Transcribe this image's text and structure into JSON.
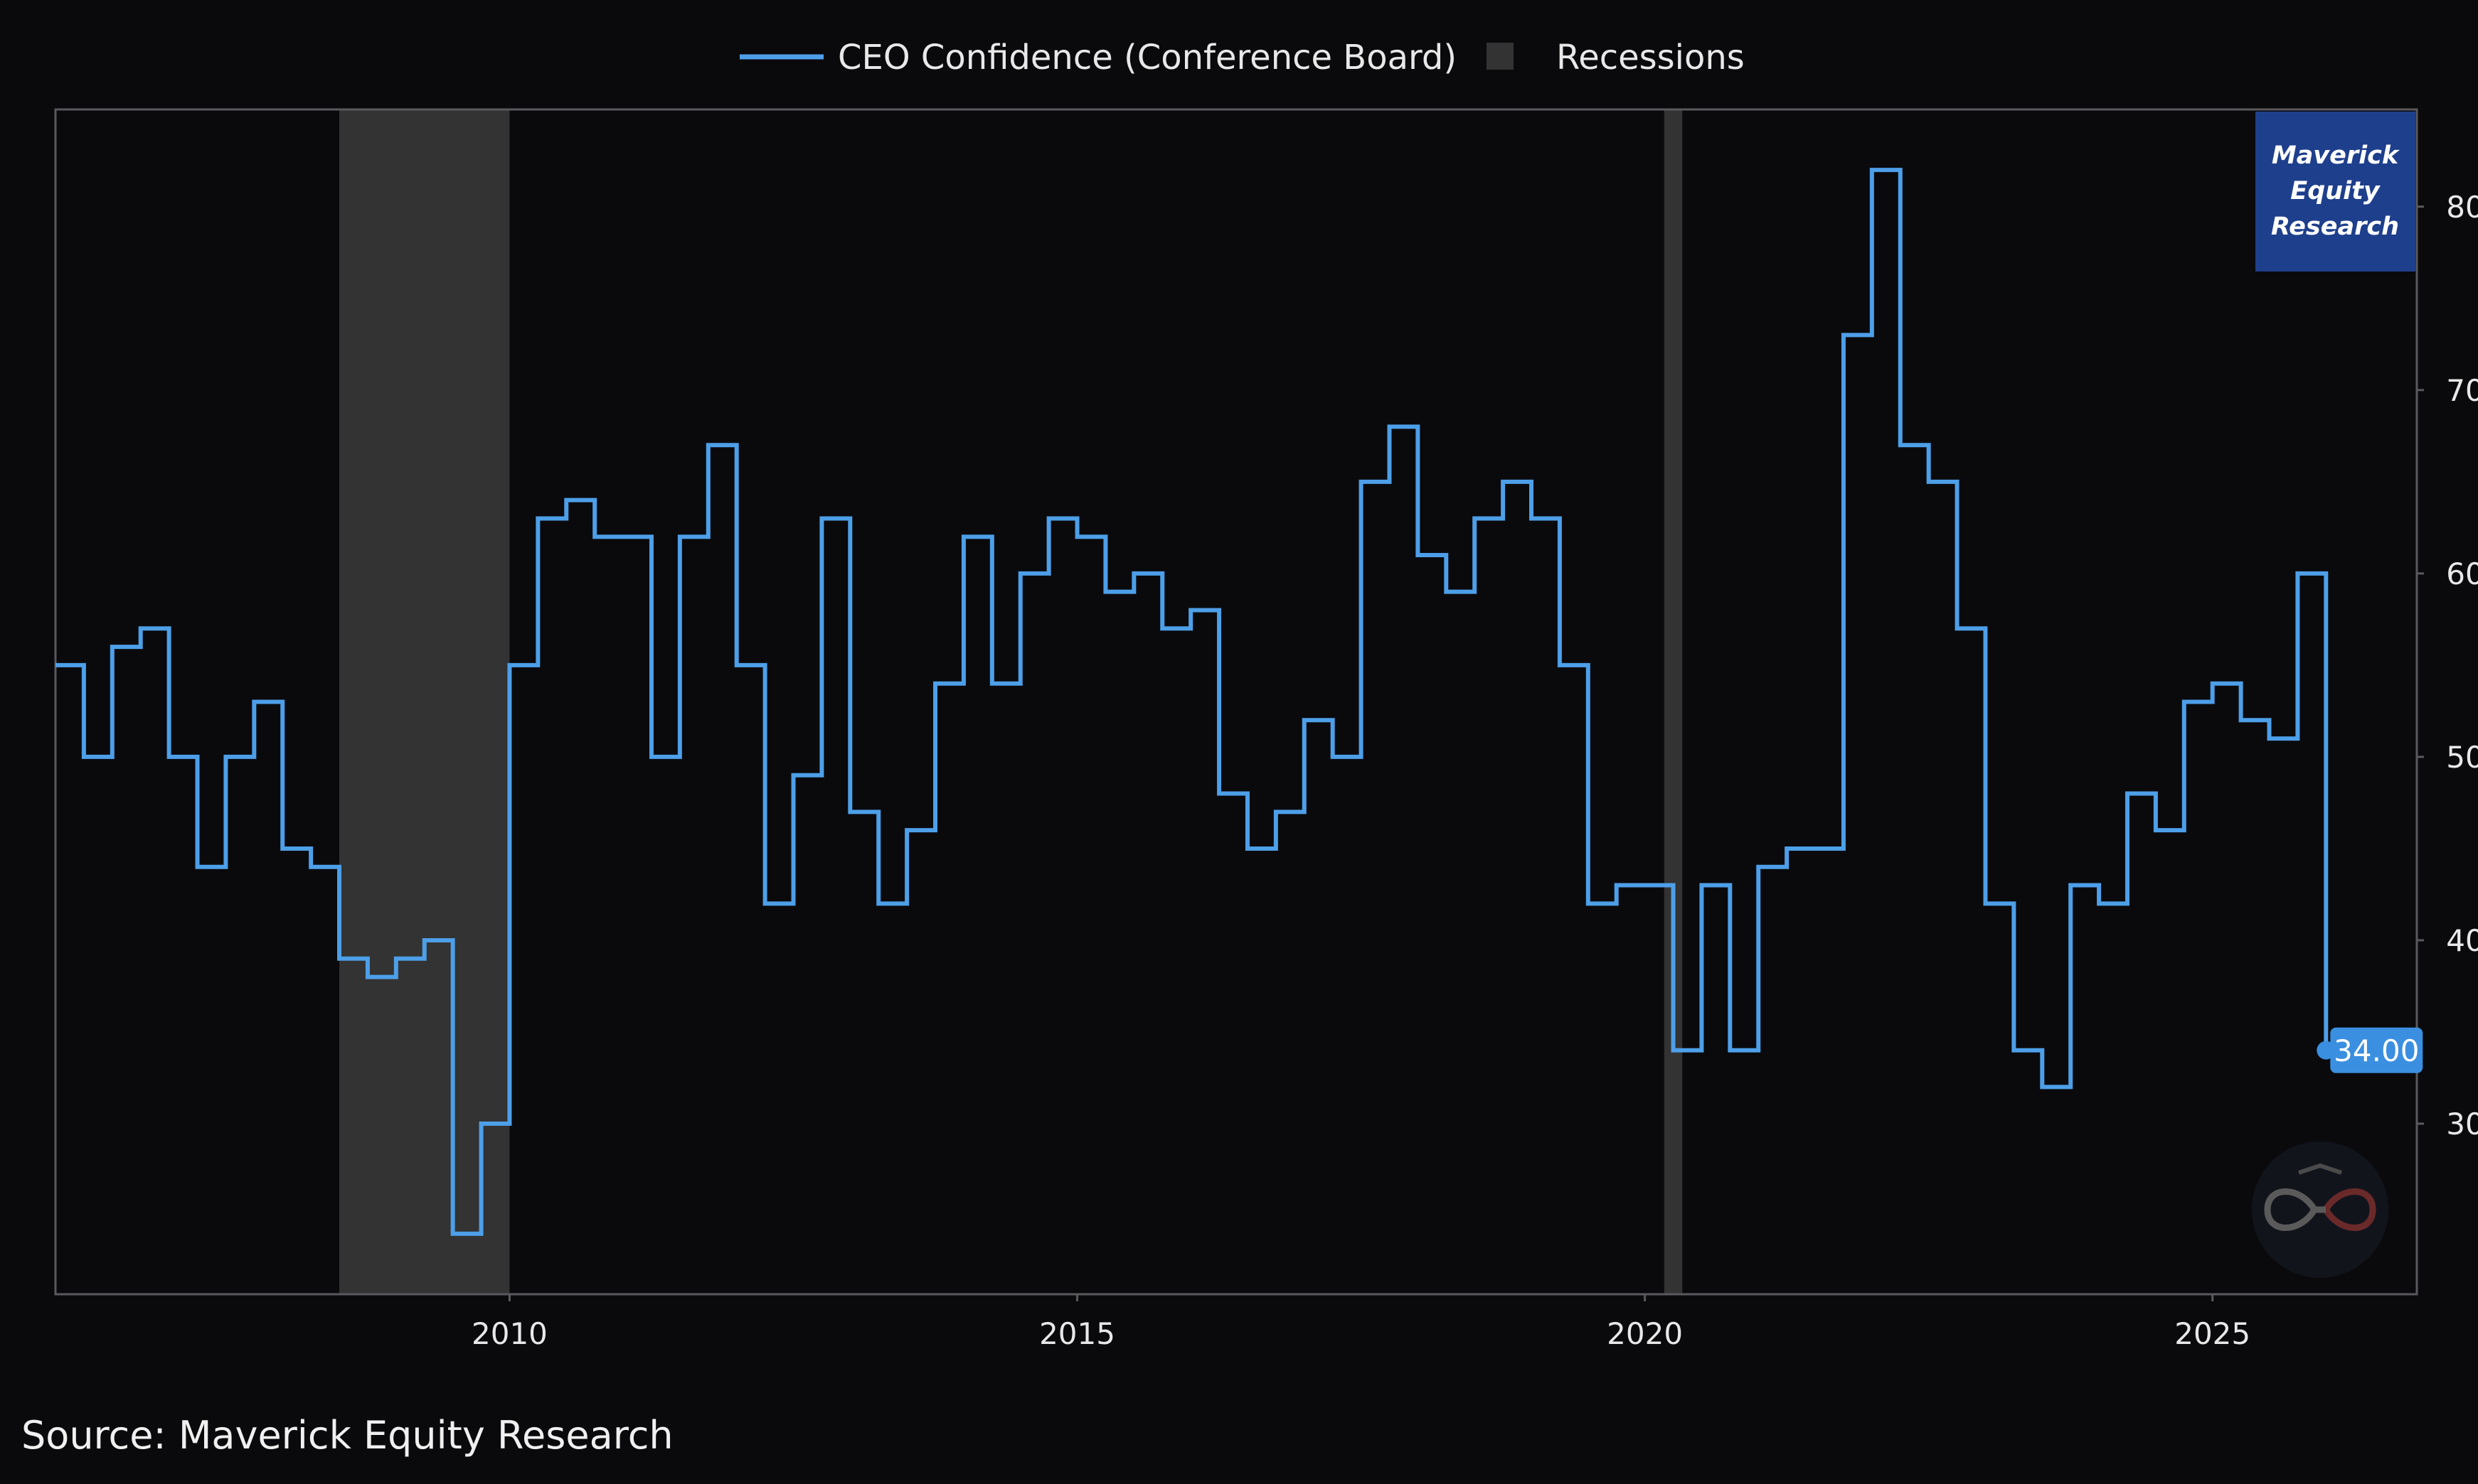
{
  "chart_data": {
    "type": "line",
    "title": "",
    "xlabel": "",
    "ylabel": "",
    "xlim": [
      2006.0,
      2026.8
    ],
    "ylim": [
      20.7,
      85.3
    ],
    "x_ticks": [
      2010,
      2015,
      2020,
      2025
    ],
    "x_tick_labels": [
      "2010",
      "2015",
      "2020",
      "2025"
    ],
    "y_ticks": [
      30,
      40,
      50,
      60,
      70,
      80
    ],
    "y_tick_labels": [
      "30",
      "40",
      "50",
      "60",
      "70",
      "80"
    ],
    "grid": false,
    "legend_position": "top-center",
    "series": [
      {
        "name": "CEO Confidence (Conference Board)",
        "color": "#4d9fe8",
        "step": true,
        "points": [
          [
            2006.0,
            55
          ],
          [
            2006.25,
            50
          ],
          [
            2006.5,
            56
          ],
          [
            2006.75,
            57
          ],
          [
            2007.0,
            50
          ],
          [
            2007.25,
            44
          ],
          [
            2007.5,
            50
          ],
          [
            2007.75,
            53
          ],
          [
            2008.0,
            45
          ],
          [
            2008.25,
            44
          ],
          [
            2008.5,
            39
          ],
          [
            2008.75,
            38
          ],
          [
            2009.0,
            39
          ],
          [
            2009.25,
            40
          ],
          [
            2009.5,
            24
          ],
          [
            2009.75,
            30
          ],
          [
            2010.0,
            55
          ],
          [
            2010.25,
            63
          ],
          [
            2010.5,
            64
          ],
          [
            2010.75,
            62
          ],
          [
            2011.0,
            62
          ],
          [
            2011.25,
            50
          ],
          [
            2011.5,
            62
          ],
          [
            2011.75,
            67
          ],
          [
            2012.0,
            55
          ],
          [
            2012.25,
            42
          ],
          [
            2012.5,
            49
          ],
          [
            2012.75,
            63
          ],
          [
            2013.0,
            47
          ],
          [
            2013.25,
            42
          ],
          [
            2013.5,
            46
          ],
          [
            2013.75,
            54
          ],
          [
            2014.0,
            62
          ],
          [
            2014.25,
            54
          ],
          [
            2014.5,
            60
          ],
          [
            2014.75,
            63
          ],
          [
            2015.0,
            62
          ],
          [
            2015.25,
            59
          ],
          [
            2015.5,
            60
          ],
          [
            2015.75,
            57
          ],
          [
            2016.0,
            58
          ],
          [
            2016.25,
            48
          ],
          [
            2016.5,
            45
          ],
          [
            2016.75,
            47
          ],
          [
            2017.0,
            52
          ],
          [
            2017.25,
            50
          ],
          [
            2017.5,
            65
          ],
          [
            2017.75,
            68
          ],
          [
            2018.0,
            61
          ],
          [
            2018.25,
            59
          ],
          [
            2018.5,
            63
          ],
          [
            2018.75,
            65
          ],
          [
            2019.0,
            63
          ],
          [
            2019.25,
            55
          ],
          [
            2019.5,
            42
          ],
          [
            2019.75,
            43
          ],
          [
            2020.0,
            43
          ],
          [
            2020.25,
            34
          ],
          [
            2020.5,
            43
          ],
          [
            2020.75,
            34
          ],
          [
            2021.0,
            44
          ],
          [
            2021.25,
            45
          ],
          [
            2021.5,
            45
          ],
          [
            2021.75,
            73
          ],
          [
            2022.0,
            82
          ],
          [
            2022.25,
            67
          ],
          [
            2022.5,
            65
          ],
          [
            2022.75,
            57
          ],
          [
            2023.0,
            42
          ],
          [
            2023.25,
            34
          ],
          [
            2023.5,
            32
          ],
          [
            2023.75,
            43
          ],
          [
            2024.0,
            42
          ],
          [
            2024.25,
            48
          ],
          [
            2024.5,
            46
          ],
          [
            2024.75,
            53
          ],
          [
            2025.0,
            54
          ],
          [
            2025.25,
            52
          ],
          [
            2025.5,
            51
          ],
          [
            2025.75,
            60
          ],
          [
            2026.0,
            34
          ]
        ],
        "last_value_label": "34.00"
      }
    ],
    "recessions": {
      "name": "Recessions",
      "color": "#333333",
      "periods": [
        [
          2008.5,
          2010.0
        ],
        [
          2020.17,
          2020.33
        ]
      ]
    },
    "annotations": [
      "Maverick Equity Research"
    ]
  },
  "legend": {
    "series_label": "CEO Confidence (Conference Board)",
    "recession_label": "Recessions"
  },
  "branding": {
    "line1": "Maverick",
    "line2": "Equity",
    "line3": "Research",
    "box_color": "#1e3f8c"
  },
  "source": "Source: Maverick Equity Research",
  "colors": {
    "background": "#0a0a0d",
    "frame": "#5a5a5e",
    "line": "#4d9fe8",
    "recession": "#333333",
    "last_label_bg": "#3a8fe0"
  }
}
